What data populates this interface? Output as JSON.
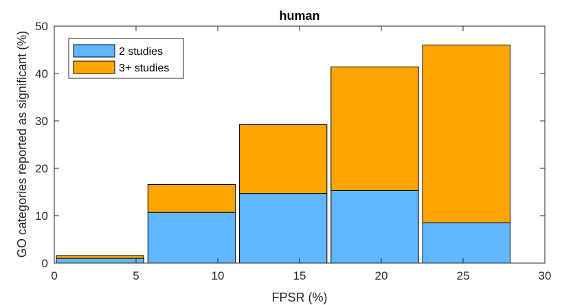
{
  "chart_data": {
    "type": "bar",
    "stacked": true,
    "title": "human",
    "xlabel": "FPSR (%)",
    "ylabel": "GO categories reported as significant (%)",
    "xlim": [
      0,
      30
    ],
    "ylim": [
      0,
      50
    ],
    "xticks": [
      0,
      5,
      10,
      15,
      20,
      25,
      30
    ],
    "yticks": [
      0,
      10,
      20,
      30,
      40,
      50
    ],
    "bin_edges": [
      0,
      5.6,
      11.2,
      16.8,
      22.4,
      28
    ],
    "series": [
      {
        "name": "2 studies",
        "color": "#60b6ff",
        "values": [
          1.0,
          10.7,
          14.7,
          15.3,
          8.5
        ]
      },
      {
        "name": "3+ studies",
        "color": "#ffa500",
        "values": [
          0.6,
          5.9,
          14.5,
          26.1,
          37.5
        ]
      }
    ],
    "legend_position": "top-left",
    "grid": false
  }
}
